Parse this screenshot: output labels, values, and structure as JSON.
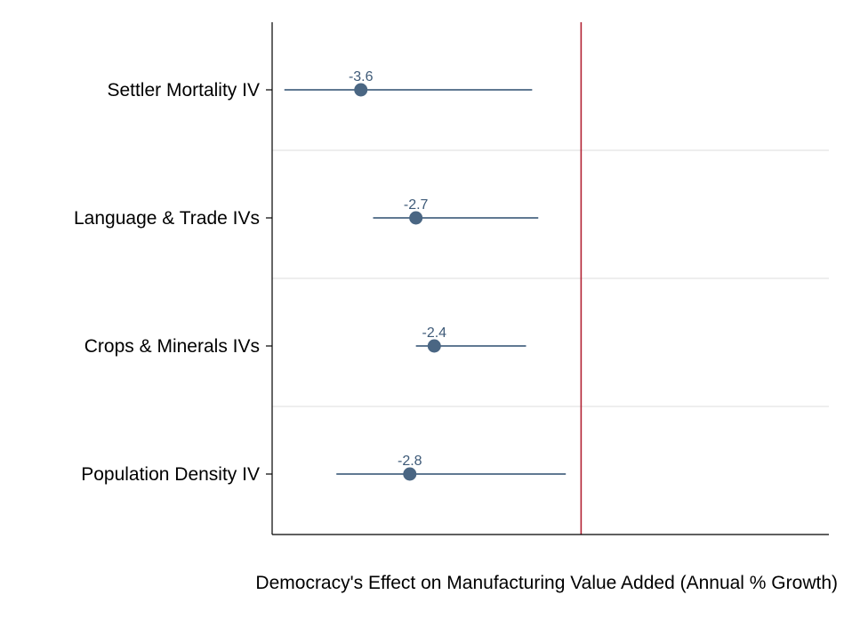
{
  "chart_data": {
    "type": "scatter",
    "subtype": "coefficient-plot",
    "title": "",
    "xlabel": "Democracy's Effect on Manufacturing Value Added (Annual % Growth)",
    "ylabel": "",
    "xlim": [
      -5.05,
      4.05
    ],
    "reference_line": {
      "x": 0,
      "color": "#b22234"
    },
    "grid": {
      "horizontal_separators": true
    },
    "legend": "none",
    "colors": {
      "marker": "#4a6683",
      "ci_line": "#4a6683",
      "label": "#3e5a78"
    },
    "categories": [
      "Settler Mortality IV",
      "Language & Trade IVs",
      "Crops & Minerals IVs",
      "Population Density IV"
    ],
    "estimates": [
      {
        "label": "-3.6",
        "value": -3.6,
        "ci_low": -4.85,
        "ci_high": -0.8
      },
      {
        "label": "-2.7",
        "value": -2.7,
        "ci_low": -3.4,
        "ci_high": -0.7
      },
      {
        "label": "-2.4",
        "value": -2.4,
        "ci_low": -2.7,
        "ci_high": -0.9
      },
      {
        "label": "-2.8",
        "value": -2.8,
        "ci_low": -4.0,
        "ci_high": -0.25
      }
    ]
  }
}
